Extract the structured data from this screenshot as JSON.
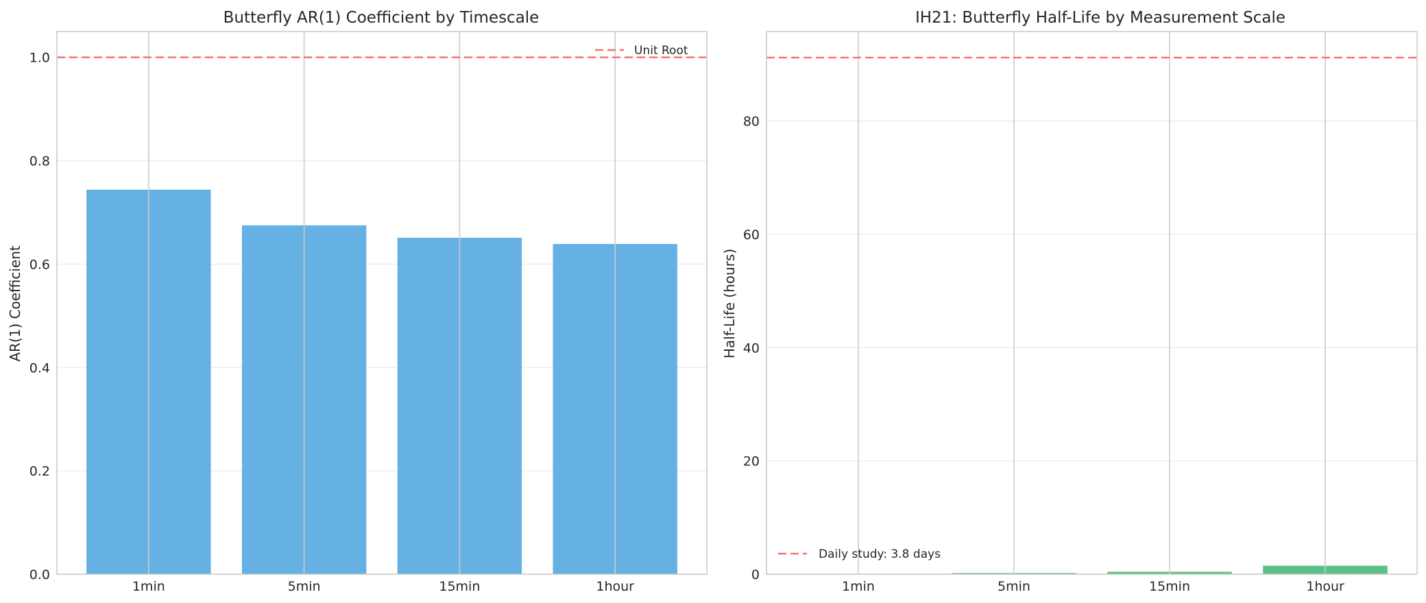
{
  "chart_data": [
    {
      "type": "bar",
      "title": "Butterfly AR(1) Coefficient by Timescale",
      "xlabel": "",
      "ylabel": "AR(1) Coefficient",
      "categories": [
        "1min",
        "5min",
        "15min",
        "1hour"
      ],
      "values": [
        0.744,
        0.675,
        0.651,
        0.639
      ],
      "ylim": [
        0.0,
        1.05
      ],
      "yticks": [
        0.0,
        0.2,
        0.4,
        0.6,
        0.8,
        1.0
      ],
      "ytick_labels": [
        "0.0",
        "0.2",
        "0.4",
        "0.6",
        "0.8",
        "1.0"
      ],
      "bar_color": "#5DADE2",
      "reference_line": {
        "value": 1.0,
        "label": "Unit Root",
        "color": "#ff6b6b",
        "style": "dashed"
      },
      "legend": {
        "position": "top-right",
        "entries": [
          "Unit Root"
        ]
      },
      "grid": true
    },
    {
      "type": "bar",
      "title": "IH21: Butterfly Half-Life by Measurement Scale",
      "xlabel": "",
      "ylabel": "Half-Life (hours)",
      "categories": [
        "1min",
        "5min",
        "15min",
        "1hour"
      ],
      "values": [
        0.04,
        0.21,
        0.43,
        1.5
      ],
      "ylim": [
        0,
        95.8
      ],
      "yticks": [
        0,
        20,
        40,
        60,
        80
      ],
      "ytick_labels": [
        "0",
        "20",
        "40",
        "60",
        "80"
      ],
      "bar_color": "#52BE80",
      "reference_line": {
        "value": 91.2,
        "label": "Daily study: 3.8 days",
        "color": "#ff6b6b",
        "style": "dashed"
      },
      "legend": {
        "position": "bottom-left",
        "entries": [
          "Daily study: 3.8 days"
        ]
      },
      "grid": true
    }
  ]
}
